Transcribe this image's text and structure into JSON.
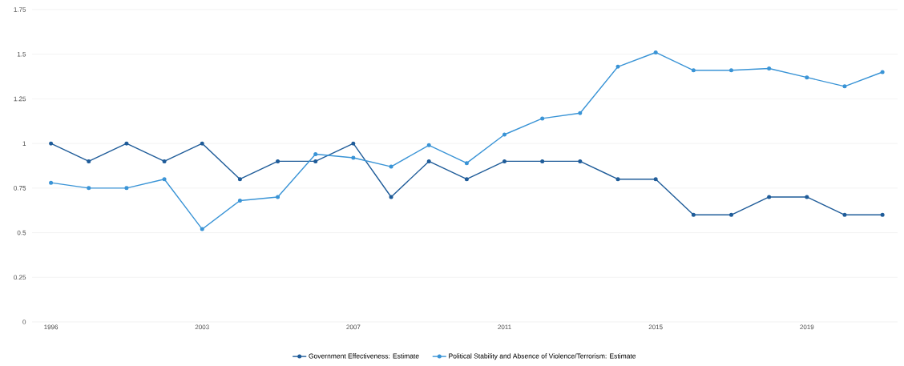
{
  "chart_data": {
    "type": "line",
    "categories": [
      "1996",
      null,
      null,
      null,
      "2003",
      null,
      null,
      null,
      "2007",
      null,
      null,
      null,
      "2011",
      null,
      null,
      null,
      "2015",
      null,
      null,
      null,
      "2019",
      null,
      null
    ],
    "series": [
      {
        "name": "Government Effectiveness: Estimate",
        "color": "#1f5c99",
        "values": [
          1,
          0.9,
          1,
          0.9,
          1,
          0.8,
          0.9,
          0.9,
          1,
          0.7,
          0.9,
          0.8,
          0.9,
          0.9,
          0.9,
          0.8,
          0.8,
          0.6,
          0.6,
          0.7,
          0.7,
          0.6,
          0.6
        ]
      },
      {
        "name": "Political Stability and Absence of Violence/Terrorism: Estimate",
        "color": "#3a94d6",
        "values": [
          0.78,
          0.75,
          0.75,
          0.8,
          0.52,
          0.68,
          0.7,
          0.94,
          0.92,
          0.87,
          0.99,
          0.89,
          1.05,
          1.14,
          1.17,
          1.43,
          1.51,
          1.41,
          1.41,
          1.42,
          1.37,
          1.32,
          1.4
        ]
      }
    ],
    "ylim": [
      0,
      1.75
    ],
    "yticks": [
      0,
      0.25,
      0.5,
      0.75,
      1,
      1.25,
      1.5,
      1.75
    ],
    "grid": "y",
    "legend": "bottom",
    "marker": "circle",
    "line_style": "solid"
  }
}
